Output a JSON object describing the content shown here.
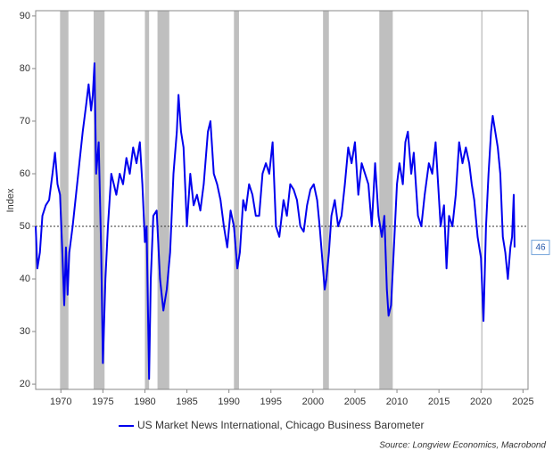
{
  "chart_data": {
    "type": "line",
    "y_label": "Index",
    "source": "Source: Longview Economics, Macrobond",
    "xlim": [
      1967,
      2025.6
    ],
    "ylim": [
      19,
      91
    ],
    "xticks": [
      1970,
      1975,
      1980,
      1985,
      1990,
      1995,
      2000,
      2005,
      2010,
      2015,
      2020,
      2025
    ],
    "yticks": [
      20,
      30,
      40,
      50,
      60,
      70,
      80,
      90
    ],
    "reference_line": 50,
    "end_label": 46,
    "recessions": [
      [
        1969.9,
        1970.9
      ],
      [
        1973.9,
        1975.2
      ],
      [
        1980.0,
        1980.5
      ],
      [
        1981.5,
        1982.9
      ],
      [
        1990.6,
        1991.2
      ],
      [
        2001.2,
        2001.9
      ],
      [
        2007.9,
        2009.5
      ],
      [
        2020.1,
        2020.3
      ]
    ],
    "recession_color": "#bfbfbf",
    "x": [
      1967.0,
      1967.2,
      1967.5,
      1967.8,
      1968.2,
      1968.6,
      1969.0,
      1969.3,
      1969.6,
      1969.9,
      1970.2,
      1970.4,
      1970.6,
      1970.8,
      1971.0,
      1971.4,
      1971.8,
      1972.2,
      1972.6,
      1973.0,
      1973.3,
      1973.6,
      1973.8,
      1974.0,
      1974.2,
      1974.5,
      1974.8,
      1975.0,
      1975.3,
      1975.6,
      1976.0,
      1976.3,
      1976.6,
      1977.0,
      1977.4,
      1977.8,
      1978.2,
      1978.6,
      1979.0,
      1979.4,
      1979.7,
      1980.0,
      1980.2,
      1980.5,
      1980.7,
      1981.0,
      1981.4,
      1981.8,
      1982.2,
      1982.6,
      1983.0,
      1983.4,
      1983.8,
      1984.0,
      1984.3,
      1984.6,
      1985.0,
      1985.4,
      1985.8,
      1986.2,
      1986.6,
      1987.0,
      1987.5,
      1987.8,
      1988.2,
      1988.6,
      1989.0,
      1989.4,
      1989.8,
      1990.2,
      1990.6,
      1991.0,
      1991.3,
      1991.7,
      1992.0,
      1992.4,
      1992.8,
      1993.2,
      1993.6,
      1994.0,
      1994.4,
      1994.8,
      1995.2,
      1995.6,
      1996.0,
      1996.5,
      1996.9,
      1997.3,
      1997.7,
      1998.1,
      1998.5,
      1998.9,
      1999.3,
      1999.7,
      2000.1,
      2000.5,
      2000.8,
      2001.1,
      2001.4,
      2001.6,
      2001.9,
      2002.2,
      2002.6,
      2003.0,
      2003.4,
      2003.8,
      2004.2,
      2004.6,
      2005.0,
      2005.4,
      2005.8,
      2006.2,
      2006.6,
      2007.0,
      2007.4,
      2007.8,
      2008.2,
      2008.5,
      2008.8,
      2009.0,
      2009.3,
      2009.7,
      2010.0,
      2010.3,
      2010.7,
      2011.0,
      2011.3,
      2011.7,
      2012.0,
      2012.5,
      2012.9,
      2013.3,
      2013.8,
      2014.2,
      2014.6,
      2014.9,
      2015.2,
      2015.6,
      2015.9,
      2016.2,
      2016.6,
      2017.0,
      2017.4,
      2017.8,
      2018.2,
      2018.6,
      2018.9,
      2019.2,
      2019.6,
      2020.0,
      2020.3,
      2020.6,
      2020.9,
      2021.2,
      2021.4,
      2021.7,
      2022.0,
      2022.3,
      2022.6,
      2022.9,
      2023.2,
      2023.5,
      2023.7,
      2023.9,
      2024.0
    ],
    "series": [
      {
        "name": "US Market News International, Chicago Business Barometer",
        "color": "#0000ee",
        "values": [
          50,
          42,
          45,
          52,
          54,
          55,
          60,
          64,
          58,
          56,
          44,
          35,
          46,
          37,
          45,
          50,
          56,
          62,
          68,
          73,
          77,
          72,
          75,
          81,
          60,
          66,
          45,
          24,
          40,
          50,
          60,
          58,
          56,
          60,
          58,
          63,
          60,
          65,
          62,
          66,
          58,
          47,
          50,
          21,
          40,
          52,
          53,
          40,
          34,
          38,
          45,
          60,
          68,
          75,
          68,
          65,
          50,
          60,
          54,
          56,
          53,
          58,
          68,
          70,
          60,
          58,
          55,
          50,
          46,
          53,
          50,
          42,
          45,
          55,
          53,
          58,
          56,
          52,
          52,
          60,
          62,
          60,
          66,
          50,
          48,
          55,
          52,
          58,
          57,
          55,
          50,
          49,
          54,
          57,
          58,
          55,
          50,
          44,
          38,
          40,
          45,
          52,
          55,
          50,
          52,
          58,
          65,
          62,
          66,
          56,
          62,
          60,
          58,
          50,
          62,
          52,
          48,
          52,
          38,
          33,
          35,
          48,
          58,
          62,
          58,
          66,
          68,
          60,
          64,
          52,
          50,
          56,
          62,
          60,
          66,
          58,
          50,
          54,
          42,
          52,
          50,
          56,
          66,
          62,
          65,
          62,
          58,
          55,
          48,
          44,
          32,
          50,
          60,
          68,
          71,
          68,
          65,
          60,
          48,
          45,
          40,
          46,
          48,
          56,
          46
        ]
      }
    ]
  }
}
